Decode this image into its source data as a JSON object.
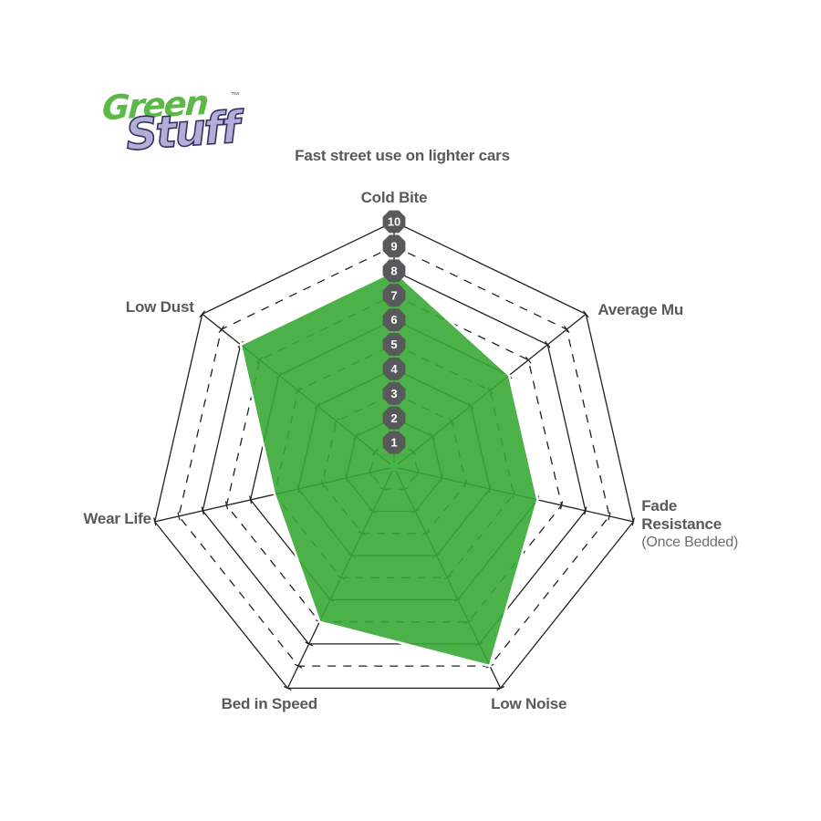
{
  "logo": {
    "green_word": "Green",
    "stuff_word": "Stuff",
    "trademark": "™"
  },
  "chart_data": {
    "type": "radar",
    "title": "Fast street use on lighter cars",
    "categories": [
      "Cold Bite",
      "Average Mu",
      "Fade Resistance (Once Bedded)",
      "Low Noise",
      "Bed in Speed",
      "Wear Life",
      "Low Dust"
    ],
    "values": [
      8,
      6,
      6,
      9,
      7,
      5,
      8
    ],
    "scale_min": 1,
    "scale_max": 10,
    "scale_ticks": [
      1,
      2,
      3,
      4,
      5,
      6,
      7,
      8,
      9,
      10
    ],
    "axis_labels": [
      {
        "lines": [
          "Cold Bite"
        ]
      },
      {
        "lines": [
          "Average Mu"
        ]
      },
      {
        "lines": [
          "Fade",
          "Resistance"
        ],
        "sub": "(Once Bedded)"
      },
      {
        "lines": [
          "Low Noise"
        ]
      },
      {
        "lines": [
          "Bed in Speed"
        ]
      },
      {
        "lines": [
          "Wear Life"
        ]
      },
      {
        "lines": [
          "Low Dust"
        ]
      }
    ],
    "grid": {
      "rings": 10,
      "solid_rings": "even",
      "dashed_rings": "odd",
      "legend": "none"
    },
    "colors": {
      "fill": "#39A834",
      "fill_opacity": 0.9,
      "grid_line": "#231F20",
      "polygon_outline": "#FFFFFF",
      "badge_bg": "#58595B",
      "badge_text": "#FFFFFF",
      "label_text": "#58595B",
      "sub_label_text": "#6D6E71"
    }
  }
}
